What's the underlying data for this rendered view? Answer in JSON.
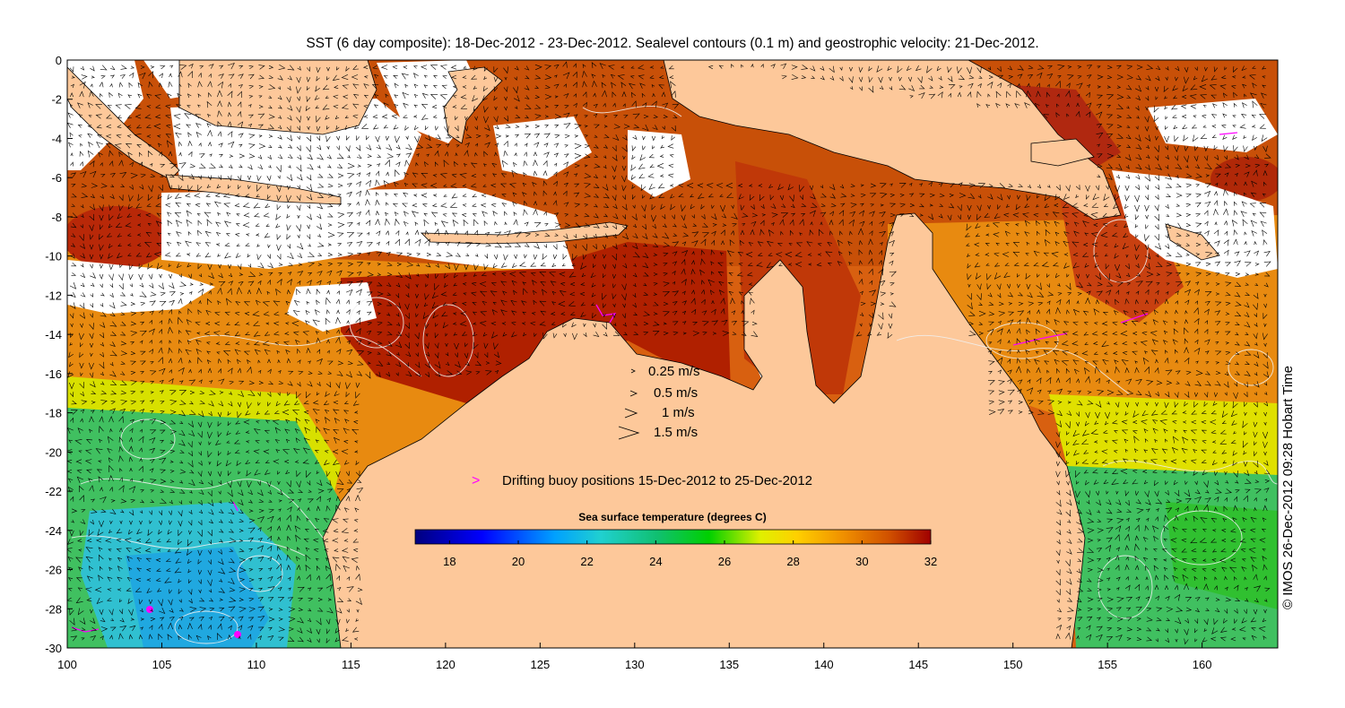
{
  "title": "SST (6 day composite): 18-Dec-2012 - 23-Dec-2012. Sealevel contours (0.1 m) and geostrophic velocity: 21-Dec-2012.",
  "copyright": "© IMOS 26-Dec-2012 09:28 Hobart Time",
  "axes": {
    "x_ticks": [
      "100",
      "105",
      "110",
      "115",
      "120",
      "125",
      "130",
      "135",
      "140",
      "145",
      "150",
      "155",
      "160"
    ],
    "y_ticks": [
      "0",
      "-2",
      "-4",
      "-6",
      "-8",
      "-10",
      "-12",
      "-14",
      "-16",
      "-18",
      "-20",
      "-22",
      "-24",
      "-26",
      "-28",
      "-30"
    ]
  },
  "velocity_legend": [
    {
      "label": "0.25 m/s",
      "speed": 0.25
    },
    {
      "label": "0.5 m/s",
      "speed": 0.5
    },
    {
      "label": "1 m/s",
      "speed": 1
    },
    {
      "label": "1.5 m/s",
      "speed": 1.5
    }
  ],
  "buoy_legend": {
    "marker": ">",
    "label": "Drifting buoy positions 15-Dec-2012 to 25-Dec-2012",
    "color": "#ff00ff"
  },
  "colorbar": {
    "title": "Sea surface temperature (degrees C)",
    "ticks": [
      "18",
      "20",
      "22",
      "24",
      "26",
      "28",
      "30",
      "32"
    ],
    "range": [
      17,
      32
    ]
  },
  "colors": {
    "land": "#fdc89a",
    "cloud": "#ffffff",
    "contours": "#f0f0f0",
    "buoy": "#ff00ff"
  }
}
